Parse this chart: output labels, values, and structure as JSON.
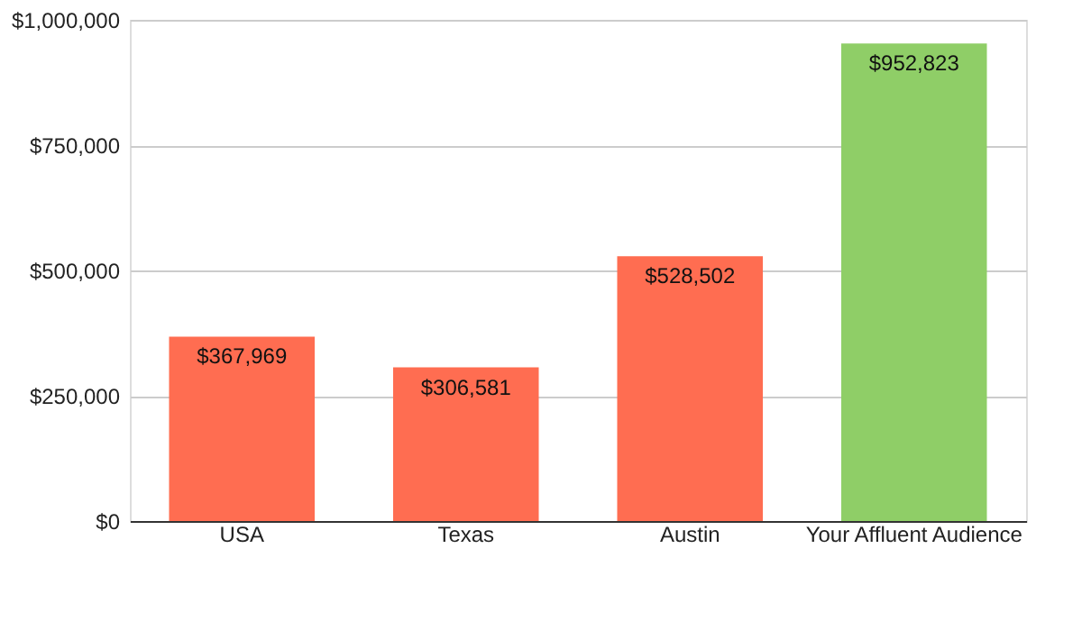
{
  "chart_data": {
    "type": "bar",
    "categories": [
      "USA",
      "Texas",
      "Austin",
      "Your Affluent Audience"
    ],
    "values": [
      367969,
      306581,
      528502,
      952823
    ],
    "colors": [
      "#ff6d51",
      "#ff6d51",
      "#ff6d51",
      "#8fce67"
    ],
    "value_labels": [
      "$367,969",
      "$306,581",
      "$528,502",
      "$952,823"
    ],
    "ylim": [
      0,
      1000000
    ],
    "yticks": [
      {
        "value": 0,
        "label": "$0"
      },
      {
        "value": 250000,
        "label": "$250,000"
      },
      {
        "value": 500000,
        "label": "$500,000"
      },
      {
        "value": 750000,
        "label": "$750,000"
      },
      {
        "value": 1000000,
        "label": "$1,000,000"
      }
    ],
    "grid": "y"
  }
}
